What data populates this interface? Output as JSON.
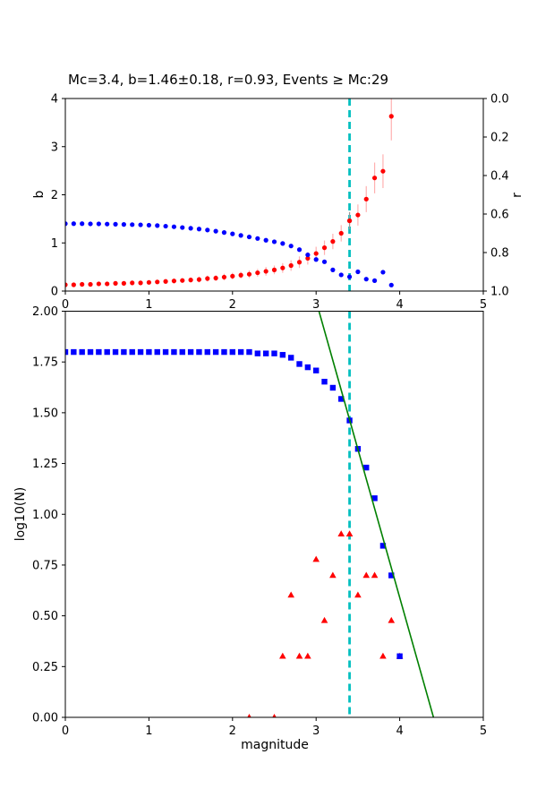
{
  "chart_data": [
    {
      "type": "scatter",
      "title": "Mc=3.4, b=1.46±0.18, r=0.93, Events ≥ Mc:29",
      "xlim": [
        0,
        5
      ],
      "xticklabels": [
        "0",
        "1",
        "2",
        "3",
        "4",
        "5"
      ],
      "ylabel_left": "b",
      "ylim_left": [
        0,
        4
      ],
      "yticklabels_left": [
        "0",
        "1",
        "2",
        "3",
        "4"
      ],
      "ylabel_right": "r",
      "ylim_right": [
        0.0,
        1.0
      ],
      "right_axis_inverted": true,
      "yticklabels_right": [
        "0.0",
        "0.2",
        "0.4",
        "0.6",
        "0.8",
        "1.0"
      ],
      "mc_line": {
        "x": 3.4,
        "color": "#00bfbf",
        "style": "dashed"
      },
      "series": [
        {
          "name": "b-value-vs-cutoff",
          "marker": "dot",
          "color": "#ff0000",
          "errorbar_color": "#ffb0b0",
          "axis": "left",
          "x": [
            0.0,
            0.1,
            0.2,
            0.3,
            0.4,
            0.5,
            0.6,
            0.7,
            0.8,
            0.9,
            1.0,
            1.1,
            1.2,
            1.3,
            1.4,
            1.5,
            1.6,
            1.7,
            1.8,
            1.9,
            2.0,
            2.1,
            2.2,
            2.3,
            2.4,
            2.5,
            2.6,
            2.7,
            2.8,
            2.9,
            3.0,
            3.1,
            3.2,
            3.3,
            3.4,
            3.5,
            3.6,
            3.7,
            3.8,
            3.9
          ],
          "y": [
            0.13,
            0.13,
            0.14,
            0.14,
            0.15,
            0.15,
            0.16,
            0.16,
            0.17,
            0.17,
            0.18,
            0.19,
            0.2,
            0.21,
            0.22,
            0.23,
            0.24,
            0.26,
            0.27,
            0.29,
            0.31,
            0.33,
            0.35,
            0.38,
            0.41,
            0.44,
            0.48,
            0.53,
            0.6,
            0.68,
            0.78,
            0.9,
            1.03,
            1.2,
            1.46,
            1.58,
            1.91,
            2.35,
            2.49,
            3.63
          ],
          "yerr": [
            0.03,
            0.03,
            0.03,
            0.03,
            0.03,
            0.03,
            0.04,
            0.04,
            0.04,
            0.04,
            0.04,
            0.04,
            0.05,
            0.05,
            0.05,
            0.05,
            0.06,
            0.06,
            0.06,
            0.07,
            0.07,
            0.07,
            0.08,
            0.08,
            0.09,
            0.09,
            0.1,
            0.11,
            0.12,
            0.13,
            0.14,
            0.15,
            0.16,
            0.17,
            0.18,
            0.22,
            0.27,
            0.32,
            0.35,
            0.5
          ]
        },
        {
          "name": "r-goodness-of-fit",
          "marker": "dot",
          "color": "#0000ff",
          "axis": "right",
          "x": [
            0.0,
            0.1,
            0.2,
            0.3,
            0.4,
            0.5,
            0.6,
            0.7,
            0.8,
            0.9,
            1.0,
            1.1,
            1.2,
            1.3,
            1.4,
            1.5,
            1.6,
            1.7,
            1.8,
            1.9,
            2.0,
            2.1,
            2.2,
            2.3,
            2.4,
            2.5,
            2.6,
            2.7,
            2.8,
            2.9,
            3.0,
            3.1,
            3.2,
            3.3,
            3.4,
            3.5,
            3.6,
            3.7,
            3.8,
            3.9
          ],
          "y": [
            0.65,
            0.65,
            0.65,
            0.651,
            0.651,
            0.652,
            0.653,
            0.654,
            0.655,
            0.656,
            0.658,
            0.66,
            0.663,
            0.666,
            0.67,
            0.674,
            0.678,
            0.683,
            0.689,
            0.696,
            0.703,
            0.711,
            0.719,
            0.727,
            0.736,
            0.744,
            0.753,
            0.766,
            0.785,
            0.812,
            0.836,
            0.848,
            0.89,
            0.916,
            0.926,
            0.9,
            0.938,
            0.946,
            0.902,
            0.969
          ]
        },
        {
          "name": "b-at-mc-marker",
          "marker": "dot",
          "color": "#808080",
          "errorbar_color": "#999999",
          "axis": "left",
          "x": [
            3.4
          ],
          "y": [
            1.46
          ],
          "yerr": [
            0.18
          ]
        }
      ]
    },
    {
      "type": "scatter",
      "xlabel": "magnitude",
      "ylabel": "log10(N)",
      "xlim": [
        0,
        5
      ],
      "ylim": [
        0.0,
        2.0
      ],
      "xticklabels": [
        "0",
        "1",
        "2",
        "3",
        "4",
        "5"
      ],
      "yticklabels": [
        "0.00",
        "0.25",
        "0.50",
        "0.75",
        "1.00",
        "1.25",
        "1.50",
        "1.75",
        "2.00"
      ],
      "mc_line": {
        "x": 3.4,
        "color": "#00bfbf",
        "style": "dashed"
      },
      "series": [
        {
          "name": "cumulative-counts",
          "marker": "square",
          "color": "#0000ff",
          "x": [
            0.0,
            0.1,
            0.2,
            0.3,
            0.4,
            0.5,
            0.6,
            0.7,
            0.8,
            0.9,
            1.0,
            1.1,
            1.2,
            1.3,
            1.4,
            1.5,
            1.6,
            1.7,
            1.8,
            1.9,
            2.0,
            2.1,
            2.2,
            2.3,
            2.4,
            2.5,
            2.6,
            2.7,
            2.8,
            2.9,
            3.0,
            3.1,
            3.2,
            3.3,
            3.4,
            3.5,
            3.6,
            3.7,
            3.8,
            3.9,
            4.0
          ],
          "y": [
            1.799,
            1.799,
            1.799,
            1.799,
            1.799,
            1.799,
            1.799,
            1.799,
            1.799,
            1.799,
            1.799,
            1.799,
            1.799,
            1.799,
            1.799,
            1.799,
            1.799,
            1.799,
            1.799,
            1.799,
            1.799,
            1.799,
            1.799,
            1.792,
            1.792,
            1.792,
            1.785,
            1.771,
            1.74,
            1.724,
            1.708,
            1.653,
            1.623,
            1.568,
            1.462,
            1.322,
            1.23,
            1.079,
            0.845,
            0.699,
            0.301
          ]
        },
        {
          "name": "noncumulative-counts",
          "marker": "triangle",
          "color": "#ff0000",
          "x": [
            2.2,
            2.5,
            2.6,
            2.7,
            2.8,
            2.9,
            3.0,
            3.1,
            3.2,
            3.3,
            3.4,
            3.5,
            3.6,
            3.7,
            3.8,
            3.9,
            4.0
          ],
          "y": [
            0.0,
            0.0,
            0.301,
            0.602,
            0.301,
            0.301,
            0.778,
            0.477,
            0.699,
            0.903,
            0.903,
            0.602,
            0.699,
            0.699,
            0.301,
            0.477,
            0.301
          ]
        },
        {
          "name": "gutenberg-richter-fit",
          "marker": "line",
          "color": "#008000",
          "fit_line": {
            "slope": -1.46,
            "intercept": 6.43,
            "x_range": [
              2.9,
              4.6
            ]
          }
        }
      ]
    }
  ]
}
